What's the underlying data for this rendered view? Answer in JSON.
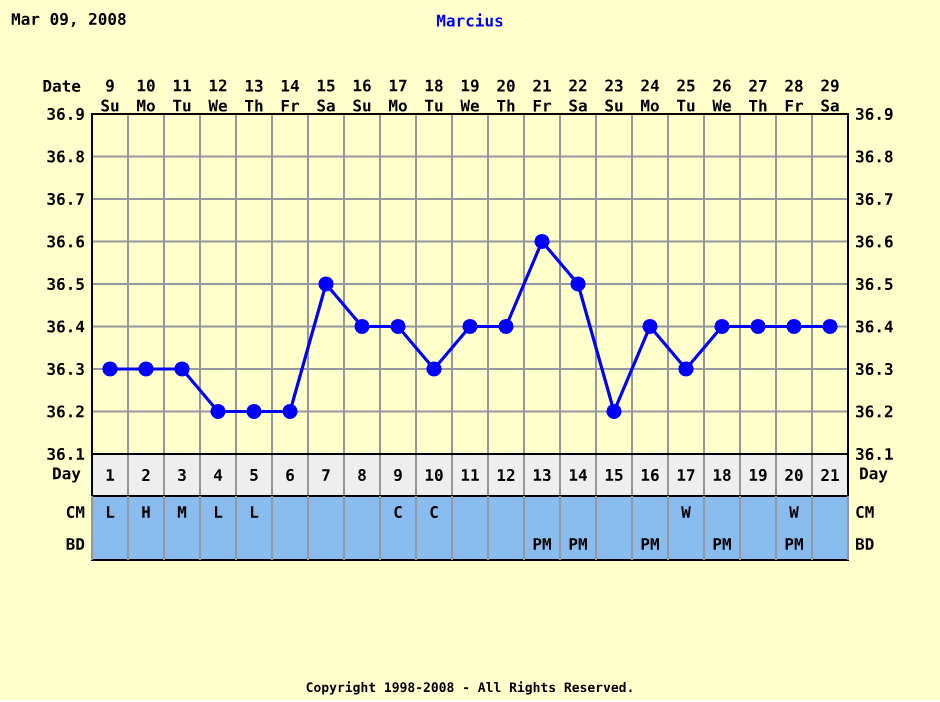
{
  "chart_data": [
    {
      "type": "line",
      "title": "Marcius",
      "subtitle": "Mar 09, 2008",
      "xlabel": "Day",
      "x2label": "Date",
      "categories": [
        "1",
        "2",
        "3",
        "4",
        "5",
        "6",
        "7",
        "8",
        "9",
        "10",
        "11",
        "12",
        "13",
        "14",
        "15",
        "16",
        "17",
        "18",
        "19",
        "20",
        "21"
      ],
      "series": [
        {
          "color": "#0000ff",
          "values": [
            36.3,
            36.3,
            36.3,
            36.2,
            36.2,
            36.2,
            36.5,
            36.4,
            36.4,
            36.3,
            36.4,
            36.4,
            36.6,
            36.5,
            36.2,
            36.4,
            36.3,
            36.4,
            36.4,
            36.4,
            36.4
          ]
        }
      ],
      "ylim": [
        36.1,
        36.9
      ],
      "yticks": [
        36.1,
        36.2,
        36.3,
        36.4,
        36.5,
        36.6,
        36.7,
        36.8,
        36.9
      ],
      "y2lim": [
        36.1,
        36.9
      ],
      "y2ticks": [
        36.1,
        36.2,
        36.3,
        36.4,
        36.5,
        36.6,
        36.7,
        36.8,
        36.9
      ],
      "x2lim": [
        8.5,
        29.5
      ],
      "x2ticks": [
        {
          "value": 9,
          "label": "9 Su"
        },
        {
          "value": 10,
          "label": "10 Mo"
        },
        {
          "value": 11,
          "label": "11 Tu"
        },
        {
          "value": 12,
          "label": "12 We"
        },
        {
          "value": 13,
          "label": "13 Th"
        },
        {
          "value": 14,
          "label": "14 Fr"
        },
        {
          "value": 15,
          "label": "15 Sa"
        },
        {
          "value": 16,
          "label": "16 Su"
        },
        {
          "value": 17,
          "label": "17 Mo"
        },
        {
          "value": 18,
          "label": "18 Tu"
        },
        {
          "value": 19,
          "label": "19 We"
        },
        {
          "value": 20,
          "label": "20 Th"
        },
        {
          "value": 21,
          "label": "21 Fr"
        },
        {
          "value": 22,
          "label": "22 Sa"
        },
        {
          "value": 23,
          "label": "23 Su"
        },
        {
          "value": 24,
          "label": "24 Mo"
        },
        {
          "value": 25,
          "label": "25 Tu"
        },
        {
          "value": 26,
          "label": "26 We"
        },
        {
          "value": 27,
          "label": "27 Th"
        },
        {
          "value": 28,
          "label": "28 Fr"
        },
        {
          "value": 29,
          "label": "29 Sa"
        }
      ],
      "grid": true,
      "marker": "circle",
      "line_style": "solid",
      "annotations": [
        "Copyright 1998-2008 - All Rights Reserved."
      ]
    },
    {
      "type": "heatmap",
      "categories": [
        null,
        null,
        null,
        null,
        null,
        null,
        null,
        null,
        null,
        null,
        null,
        null,
        null,
        null,
        null,
        null,
        null,
        null,
        null,
        null,
        null
      ],
      "y_categories": [
        "CM",
        "BD"
      ],
      "y2_categories": [
        "CM",
        "BD"
      ],
      "cells": [
        [
          null,
          null,
          null,
          null,
          null,
          null,
          null,
          null,
          null,
          null,
          null,
          null,
          null,
          null,
          null,
          null,
          null,
          null,
          null,
          null,
          null
        ],
        [
          null,
          null,
          null,
          null,
          null,
          null,
          null,
          null,
          null,
          null,
          null,
          null,
          null,
          null,
          null,
          null,
          null,
          null,
          null,
          null,
          null
        ]
      ],
      "cell_labels": [
        [
          "L",
          "H",
          "M",
          "L",
          "L",
          null,
          null,
          null,
          "C",
          "C",
          null,
          null,
          null,
          null,
          null,
          null,
          "W",
          null,
          null,
          "W",
          null
        ],
        [
          null,
          null,
          null,
          null,
          null,
          null,
          null,
          null,
          null,
          null,
          null,
          null,
          "PM",
          "PM",
          null,
          "PM",
          null,
          "PM",
          null,
          "PM",
          null
        ]
      ]
    }
  ]
}
